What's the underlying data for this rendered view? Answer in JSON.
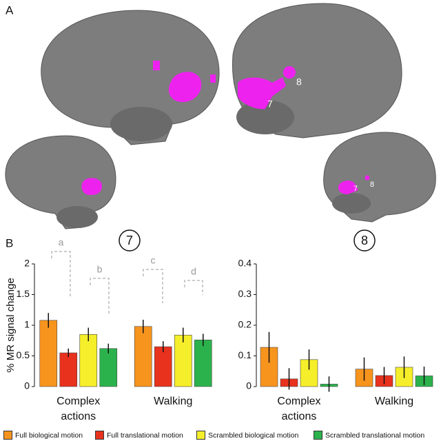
{
  "panels": [
    "A",
    "B"
  ],
  "brain_labels": [
    "8",
    "7",
    "7",
    "8"
  ],
  "chart_data": [
    {
      "type": "bar",
      "title": "7",
      "y_label": "% MR signal change",
      "categories": [
        "Complex actions",
        "Walking"
      ],
      "ylim": [
        0,
        2
      ],
      "yticks": [
        0,
        0.5,
        1,
        1.5,
        2
      ],
      "series": [
        {
          "name": "Full biological motion",
          "color": "#f7941d",
          "values": [
            1.08,
            0.98
          ],
          "errors": [
            0.12,
            0.11
          ]
        },
        {
          "name": "Full translational motion",
          "color": "#e8321e",
          "values": [
            0.55,
            0.65
          ],
          "errors": [
            0.07,
            0.09
          ]
        },
        {
          "name": "Scrambled biological motion",
          "color": "#f5ee2a",
          "values": [
            0.85,
            0.84
          ],
          "errors": [
            0.11,
            0.12
          ]
        },
        {
          "name": "Scrambled translational motion",
          "color": "#2bb24c",
          "values": [
            0.62,
            0.76
          ],
          "errors": [
            0.08,
            0.1
          ]
        }
      ],
      "annotations": [
        "a",
        "b",
        "c",
        "d"
      ]
    },
    {
      "type": "bar",
      "title": "8",
      "categories": [
        "Complex actions",
        "Walking"
      ],
      "ylim": [
        0,
        0.4
      ],
      "yticks": [
        0,
        0.1,
        0.2,
        0.3,
        0.4
      ],
      "series": [
        {
          "color": "#f7941d",
          "values": [
            0.128,
            0.057
          ],
          "errors": [
            0.05,
            0.038
          ]
        },
        {
          "color": "#e8321e",
          "values": [
            0.025,
            0.036
          ],
          "errors": [
            0.035,
            0.028
          ]
        },
        {
          "color": "#f5ee2a",
          "values": [
            0.088,
            0.063
          ],
          "errors": [
            0.033,
            0.035
          ]
        },
        {
          "color": "#2bb24c",
          "values": [
            0.008,
            0.035
          ],
          "errors": [
            0.025,
            0.03
          ]
        }
      ]
    }
  ]
}
